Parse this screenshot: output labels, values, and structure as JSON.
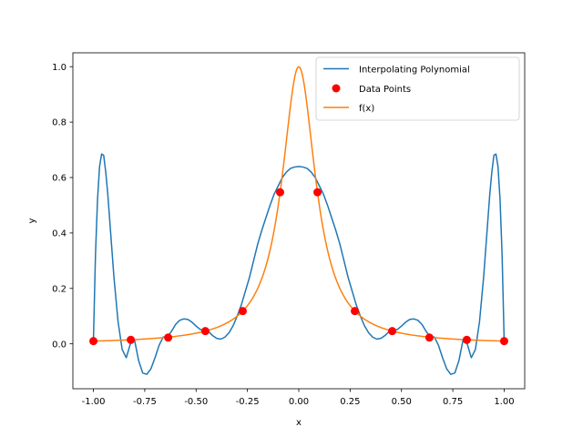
{
  "chart_data": {
    "type": "line",
    "xlabel": "x",
    "ylabel": "y",
    "xlim": [
      -1.1,
      1.1
    ],
    "ylim": [
      -0.162,
      1.05
    ],
    "xticks": [
      "-1.00",
      "-0.75",
      "-0.50",
      "-0.25",
      "0.00",
      "0.25",
      "0.50",
      "0.75",
      "1.00"
    ],
    "yticks": [
      "0.0",
      "0.2",
      "0.4",
      "0.6",
      "0.8",
      "1.0"
    ],
    "grid": false,
    "legend_position": "top-right",
    "series": [
      {
        "name": "Interpolating Polynomial",
        "kind": "line",
        "color": "#1f77b4",
        "x": [
          -1.0,
          -0.99,
          -0.98,
          -0.97,
          -0.96,
          -0.95,
          -0.94,
          -0.93,
          -0.92,
          -0.91,
          -0.9,
          -0.88,
          -0.86,
          -0.84,
          -0.82,
          -0.8,
          -0.78,
          -0.76,
          -0.74,
          -0.72,
          -0.7,
          -0.68,
          -0.66,
          -0.64,
          -0.62,
          -0.6,
          -0.58,
          -0.56,
          -0.54,
          -0.52,
          -0.5,
          -0.48,
          -0.46,
          -0.44,
          -0.42,
          -0.4,
          -0.38,
          -0.36,
          -0.34,
          -0.32,
          -0.3,
          -0.28,
          -0.26,
          -0.24,
          -0.22,
          -0.2,
          -0.18,
          -0.16,
          -0.14,
          -0.12,
          -0.1,
          -0.08,
          -0.06,
          -0.04,
          -0.02,
          0.0,
          0.02,
          0.04,
          0.06,
          0.08,
          0.1,
          0.12,
          0.14,
          0.16,
          0.18,
          0.2,
          0.22,
          0.24,
          0.26,
          0.28,
          0.3,
          0.32,
          0.34,
          0.36,
          0.38,
          0.4,
          0.42,
          0.44,
          0.46,
          0.48,
          0.5,
          0.52,
          0.54,
          0.56,
          0.58,
          0.6,
          0.62,
          0.64,
          0.66,
          0.68,
          0.7,
          0.72,
          0.74,
          0.76,
          0.78,
          0.8,
          0.82,
          0.84,
          0.86,
          0.88,
          0.9,
          0.91,
          0.92,
          0.93,
          0.94,
          0.95,
          0.96,
          0.97,
          0.98,
          0.99,
          1.0
        ],
        "y": [
          0.01,
          0.32,
          0.52,
          0.64,
          0.685,
          0.68,
          0.62,
          0.54,
          0.44,
          0.34,
          0.24,
          0.08,
          -0.02,
          -0.05,
          0.0,
          0.015,
          -0.06,
          -0.105,
          -0.11,
          -0.09,
          -0.05,
          -0.005,
          0.025,
          0.025,
          0.045,
          0.07,
          0.085,
          0.09,
          0.088,
          0.078,
          0.064,
          0.052,
          0.048,
          0.045,
          0.03,
          0.02,
          0.017,
          0.024,
          0.04,
          0.065,
          0.1,
          0.14,
          0.19,
          0.24,
          0.3,
          0.36,
          0.41,
          0.455,
          0.5,
          0.54,
          0.57,
          0.6,
          0.62,
          0.633,
          0.638,
          0.64,
          0.638,
          0.633,
          0.62,
          0.6,
          0.57,
          0.54,
          0.5,
          0.455,
          0.41,
          0.36,
          0.3,
          0.24,
          0.19,
          0.14,
          0.1,
          0.065,
          0.04,
          0.024,
          0.017,
          0.02,
          0.03,
          0.045,
          0.048,
          0.052,
          0.064,
          0.078,
          0.088,
          0.09,
          0.085,
          0.07,
          0.045,
          0.025,
          0.025,
          -0.005,
          -0.05,
          -0.09,
          -0.11,
          -0.105,
          -0.06,
          0.015,
          0.0,
          -0.05,
          -0.02,
          0.08,
          0.24,
          0.34,
          0.44,
          0.54,
          0.62,
          0.68,
          0.685,
          0.64,
          0.52,
          0.32,
          0.01
        ]
      },
      {
        "name": "Data Points",
        "kind": "scatter",
        "color": "#ff0000",
        "x": [
          -1.0,
          -0.818,
          -0.636,
          -0.455,
          -0.273,
          -0.091,
          0.091,
          0.273,
          0.455,
          0.636,
          0.818,
          1.0
        ],
        "y": [
          0.0099,
          0.0145,
          0.0226,
          0.0461,
          0.1183,
          0.547,
          0.547,
          0.1183,
          0.0461,
          0.0226,
          0.0145,
          0.0099
        ]
      },
      {
        "name": "f(x)",
        "kind": "function",
        "color": "#ff7f0e",
        "function": "1/(1+100x^2)",
        "x_range": [
          -1.0,
          1.0
        ]
      }
    ]
  }
}
